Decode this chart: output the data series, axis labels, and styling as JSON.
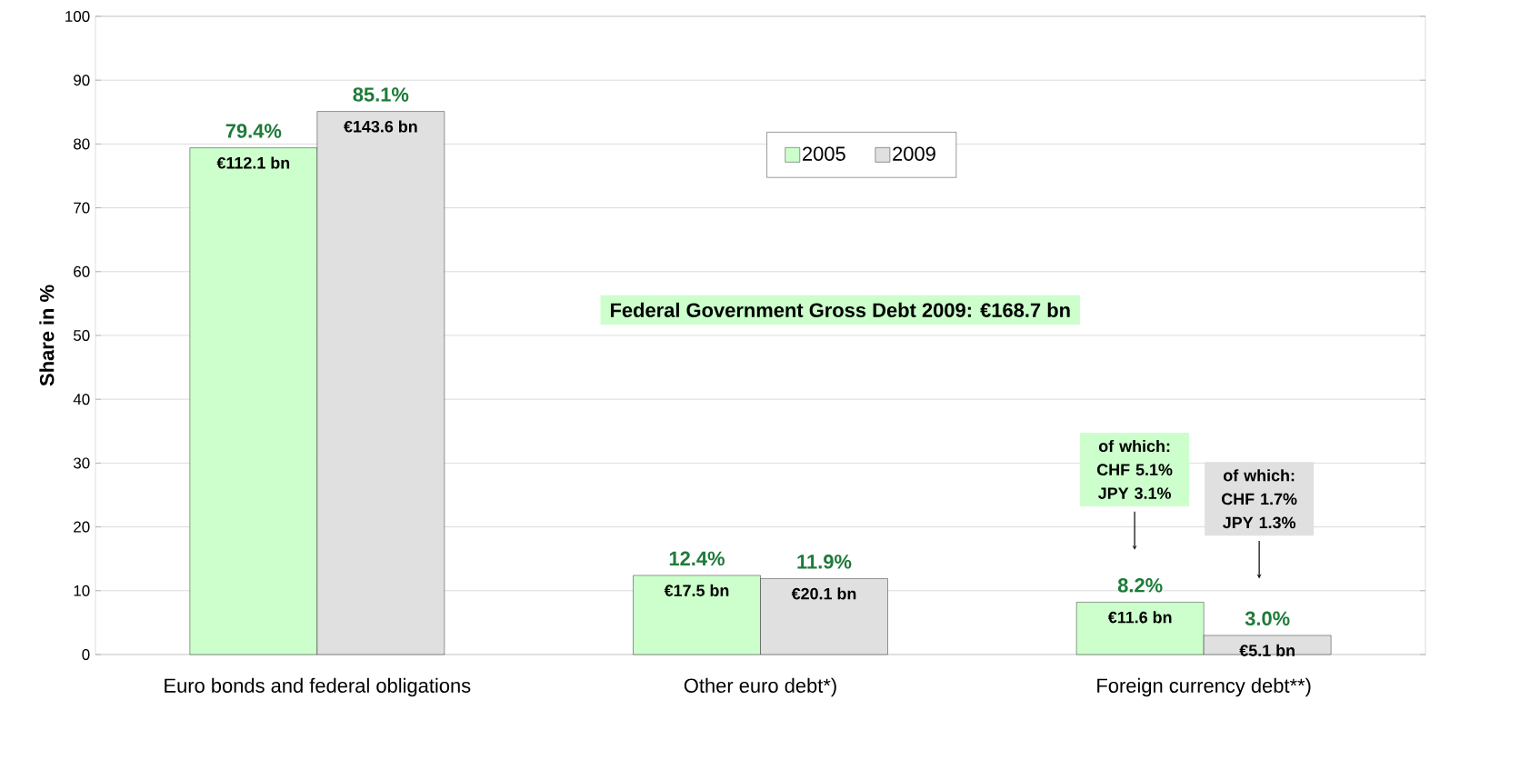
{
  "chart_data": {
    "type": "bar",
    "ylabel": "Share in %",
    "categories": [
      "Euro bonds and federal obligations",
      "Other euro debt*)",
      "Foreign currency debt**)"
    ],
    "series": [
      {
        "name": "2005",
        "color": "#ccffcc",
        "values": [
          79.4,
          12.4,
          8.2
        ],
        "value_labels": [
          "79.4%",
          "12.4%",
          "8.2%"
        ]
      },
      {
        "name": "2009",
        "color": "#e0e0e0",
        "values": [
          85.1,
          11.9,
          3.0
        ],
        "value_labels": [
          "85.1%",
          "11.9%",
          "3.0%"
        ]
      }
    ],
    "ylim": [
      0,
      100
    ],
    "yticks": [
      0,
      10,
      20,
      30,
      40,
      50,
      60,
      70,
      80,
      90,
      100
    ],
    "grid": "y",
    "legend": "top",
    "annotations": [
      "Federal Government Gross Debt 2009:  €168.7 bn",
      "of which: CHF 5.1% JPY 3.1%",
      "of which: CHF 1.7% JPY 1.3%",
      {
        "text": "€112.1 bn",
        "x": "Euro bonds and federal obligations",
        "y": 79.4
      },
      {
        "text": "€143.6 bn",
        "x": "Euro bonds and federal obligations",
        "y": 85.1
      },
      {
        "text": "€17.5 bn",
        "x": "Other euro debt*)",
        "y": 12.4
      },
      {
        "text": "€20.1 bn",
        "x": "Other euro debt*)",
        "y": 11.9
      },
      {
        "text": "€11.6 bn",
        "x": "Foreign currency debt**)",
        "y": 8.2
      },
      {
        "text": "€5.1 bn",
        "x": "Foreign currency debt**)",
        "y": 3.0
      }
    ]
  }
}
